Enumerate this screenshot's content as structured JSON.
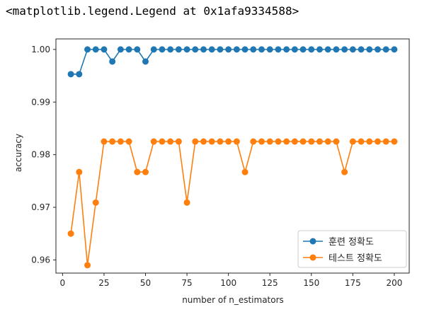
{
  "output_text": "<matplotlib.legend.Legend at 0x1afa9334588>",
  "chart_data": {
    "type": "line",
    "title": "",
    "xlabel": "number of n_estimators",
    "ylabel": "accuracy",
    "xlim": [
      -4,
      209
    ],
    "ylim": [
      0.9575,
      1.002
    ],
    "xticks": [
      0,
      25,
      50,
      75,
      100,
      125,
      150,
      175,
      200
    ],
    "yticks": [
      0.96,
      0.97,
      0.98,
      0.99,
      1.0
    ],
    "ytick_labels": [
      "0.96",
      "0.97",
      "0.98",
      "0.99",
      "1.00"
    ],
    "grid": false,
    "legend_position": "lower-right",
    "x": [
      5,
      10,
      15,
      20,
      25,
      30,
      35,
      40,
      45,
      50,
      55,
      60,
      65,
      70,
      75,
      80,
      85,
      90,
      95,
      100,
      105,
      110,
      115,
      120,
      125,
      130,
      135,
      140,
      145,
      150,
      155,
      160,
      165,
      170,
      175,
      180,
      185,
      190,
      195,
      200
    ],
    "series": [
      {
        "name": "훈련 정확도",
        "color": "#1f77b4",
        "values": [
          0.9953,
          0.9953,
          1.0,
          1.0,
          1.0,
          0.9977,
          1.0,
          1.0,
          1.0,
          0.9977,
          1.0,
          1.0,
          1.0,
          1.0,
          1.0,
          1.0,
          1.0,
          1.0,
          1.0,
          1.0,
          1.0,
          1.0,
          1.0,
          1.0,
          1.0,
          1.0,
          1.0,
          1.0,
          1.0,
          1.0,
          1.0,
          1.0,
          1.0,
          1.0,
          1.0,
          1.0,
          1.0,
          1.0,
          1.0,
          1.0
        ]
      },
      {
        "name": "테스트 정확도",
        "color": "#ff7f0e",
        "values": [
          0.965,
          0.9767,
          0.959,
          0.9709,
          0.9825,
          0.9825,
          0.9825,
          0.9825,
          0.9767,
          0.9767,
          0.9825,
          0.9825,
          0.9825,
          0.9825,
          0.9709,
          0.9825,
          0.9825,
          0.9825,
          0.9825,
          0.9825,
          0.9825,
          0.9767,
          0.9825,
          0.9825,
          0.9825,
          0.9825,
          0.9825,
          0.9825,
          0.9825,
          0.9825,
          0.9825,
          0.9825,
          0.9825,
          0.9767,
          0.9825,
          0.9825,
          0.9825,
          0.9825,
          0.9825,
          0.9825
        ]
      }
    ]
  }
}
